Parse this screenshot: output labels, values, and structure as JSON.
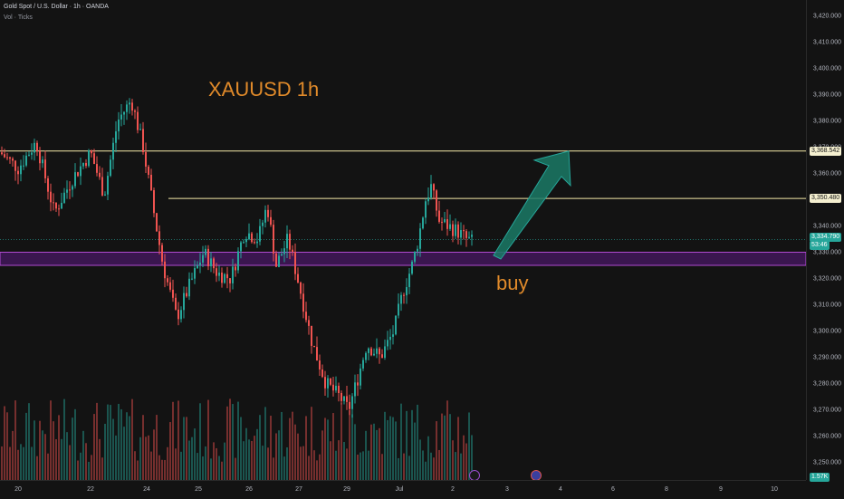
{
  "header": {
    "symbol_line": "Gold Spot / U.S. Dollar · 1h · OANDA",
    "volume_line": "Vol · Ticks"
  },
  "annotations": {
    "title": "XAUUSD 1h",
    "signal": "buy"
  },
  "price_axis": {
    "ticks": [
      "3,420.000",
      "3,410.000",
      "3,400.000",
      "3,390.000",
      "3,380.000",
      "3,370.000",
      "3,360.000",
      "3,350.000",
      "3,340.000",
      "3,330.000",
      "3,320.000",
      "3,310.000",
      "3,300.000",
      "3,290.000",
      "3,280.000",
      "3,270.000",
      "3,260.000",
      "3,250.000"
    ],
    "level_badges": [
      {
        "text": "3,368.542",
        "value": 3368.542
      },
      {
        "text": "3,350.480",
        "value": 3350.48
      }
    ],
    "current_price": {
      "text": "3,334.790",
      "value": 3334.79
    },
    "countdown": "53:46",
    "volume_badge": "1.57K"
  },
  "time_axis": {
    "labels": [
      "20",
      "22",
      "24",
      "25",
      "26",
      "27",
      "29",
      "Jul",
      "2",
      "3",
      "4",
      "6",
      "8",
      "9",
      "10"
    ]
  },
  "chart_data": {
    "type": "candlestick",
    "symbol": "XAUUSD",
    "timeframe": "1h",
    "horizontal_levels": [
      3368.542,
      3350.48
    ],
    "support_zone": [
      3325,
      3330
    ],
    "arrow_target": 3368.5,
    "up_color": "#26a69a",
    "down_color": "#ef5350",
    "level_color": "#f5e9a8",
    "zone_color": "#6a1b9a",
    "arrow_color": "#1b7a66"
  }
}
